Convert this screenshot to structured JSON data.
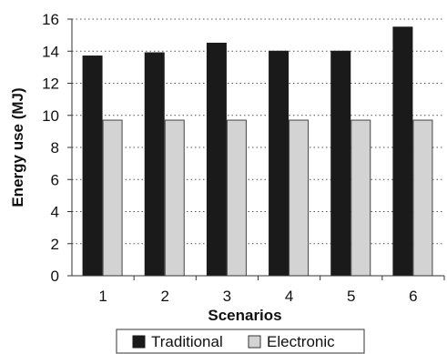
{
  "chart_data": {
    "type": "bar",
    "categories": [
      "1",
      "2",
      "3",
      "4",
      "5",
      "6"
    ],
    "series": [
      {
        "name": "Traditional",
        "values": [
          13.7,
          13.9,
          14.5,
          14.0,
          14.0,
          15.5
        ],
        "color": "#1a1a1a"
      },
      {
        "name": "Electronic",
        "values": [
          9.7,
          9.7,
          9.7,
          9.7,
          9.7,
          9.7
        ],
        "color": "#d3d3d3"
      }
    ],
    "xlabel": "Scenarios",
    "ylabel": "Energy use (MJ)",
    "ylim": [
      0,
      16
    ],
    "yticks": [
      0,
      2,
      4,
      6,
      8,
      10,
      12,
      14,
      16
    ],
    "grid": "horizontal dotted",
    "legend_position": "bottom"
  }
}
